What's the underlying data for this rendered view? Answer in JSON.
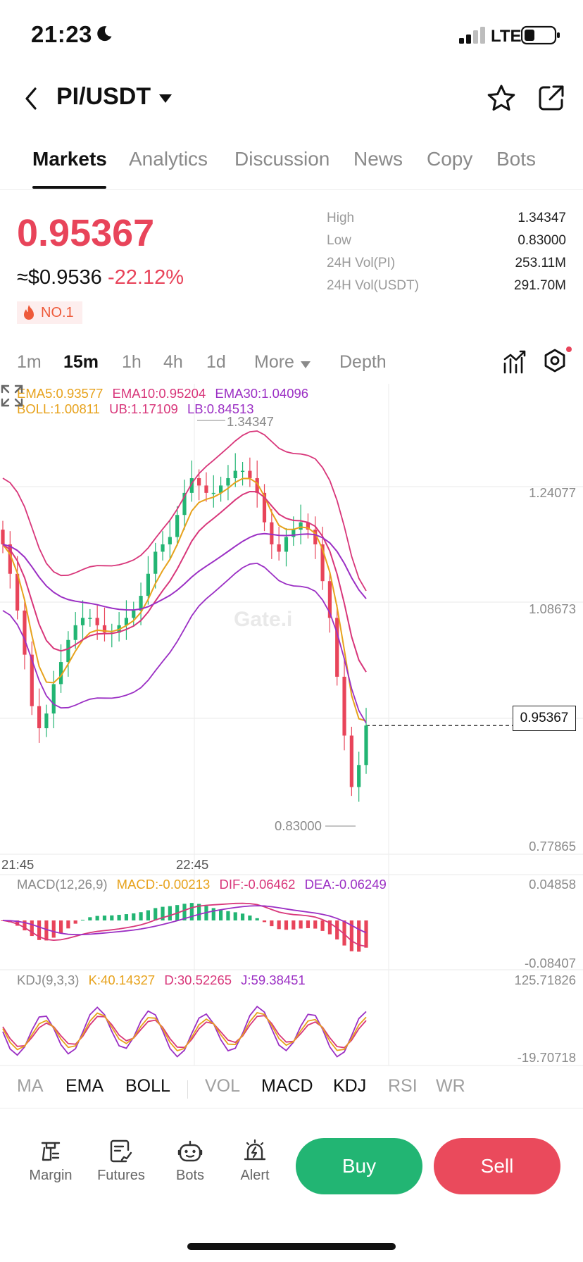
{
  "status": {
    "time": "21:23",
    "network": "LTE"
  },
  "header": {
    "pair": "PI/USDT"
  },
  "tabs": [
    "Markets",
    "Analytics",
    "Discussion",
    "News",
    "Copy",
    "Bots"
  ],
  "ticker": {
    "last_price": "0.95367",
    "usd_price": "≈$0.9536",
    "change": "-22.12%",
    "rank": "NO.1",
    "stats": [
      {
        "label": "High",
        "value": "1.34347"
      },
      {
        "label": "Low",
        "value": "0.83000"
      },
      {
        "label": "24H Vol(PI)",
        "value": "253.11M"
      },
      {
        "label": "24H Vol(USDT)",
        "value": "291.70M"
      }
    ]
  },
  "timeframes": {
    "m1": "1m",
    "m15": "15m",
    "h1": "1h",
    "h4": "4h",
    "d1": "1d",
    "more": "More",
    "depth": "Depth"
  },
  "indicators": {
    "ema5": "EMA5:0.93577",
    "ema10": "EMA10:0.95204",
    "ema30": "EMA30:1.04096",
    "boll": "BOLL:1.00811",
    "ub": "UB:1.17109",
    "lb": "LB:0.84513",
    "macd_name": "MACD(12,26,9)",
    "macd": "MACD:-0.00213",
    "dif": "DIF:-0.06462",
    "dea": "DEA:-0.06249",
    "kdj_name": "KDJ(9,3,3)",
    "k": "K:40.14327",
    "d": "D:30.52265",
    "j": "J:59.38451"
  },
  "chart_axes": {
    "y_labels": [
      "1.24077",
      "1.08673",
      "0.77865"
    ],
    "high_marker": "1.34347",
    "low_marker": "0.83000",
    "current_price_tag": "0.95367",
    "x_labels": [
      "21:45",
      "22:45"
    ],
    "macd_axis": [
      "0.04858",
      "-0.08407"
    ],
    "kdj_axis": [
      "125.71826",
      "-19.70718"
    ],
    "watermark": "Gate.i"
  },
  "indicator_tabs": [
    "MA",
    "EMA",
    "BOLL",
    "VOL",
    "MACD",
    "KDJ",
    "RSI",
    "WR"
  ],
  "bottom_bar": {
    "margin": "Margin",
    "futures": "Futures",
    "bots": "Bots",
    "alert": "Alert",
    "buy": "Buy",
    "sell": "Sell"
  },
  "colors": {
    "up": "#22b573",
    "down": "#e8445a",
    "ema5": "#e7a21c",
    "ema10": "#d8367a",
    "ema30": "#9b2fc4"
  },
  "chart_data": {
    "type": "candlestick",
    "interval": "15m",
    "x_ticks": [
      "21:45",
      "22:45"
    ],
    "y_range": [
      0.77865,
      1.38
    ],
    "high": 1.34347,
    "low": 0.83,
    "last": 0.95367,
    "close_series": [
      1.2,
      1.16,
      1.11,
      1.05,
      0.98,
      0.95,
      0.97,
      1.01,
      1.04,
      1.07,
      1.09,
      1.1,
      1.1,
      1.09,
      1.08,
      1.08,
      1.09,
      1.1,
      1.11,
      1.13,
      1.16,
      1.19,
      1.2,
      1.21,
      1.24,
      1.27,
      1.29,
      1.28,
      1.27,
      1.27,
      1.28,
      1.29,
      1.3,
      1.3,
      1.29,
      1.27,
      1.23,
      1.2,
      1.19,
      1.21,
      1.22,
      1.23,
      1.22,
      1.2,
      1.15,
      1.1,
      1.02,
      0.94,
      0.87,
      0.9,
      0.95367
    ]
  }
}
